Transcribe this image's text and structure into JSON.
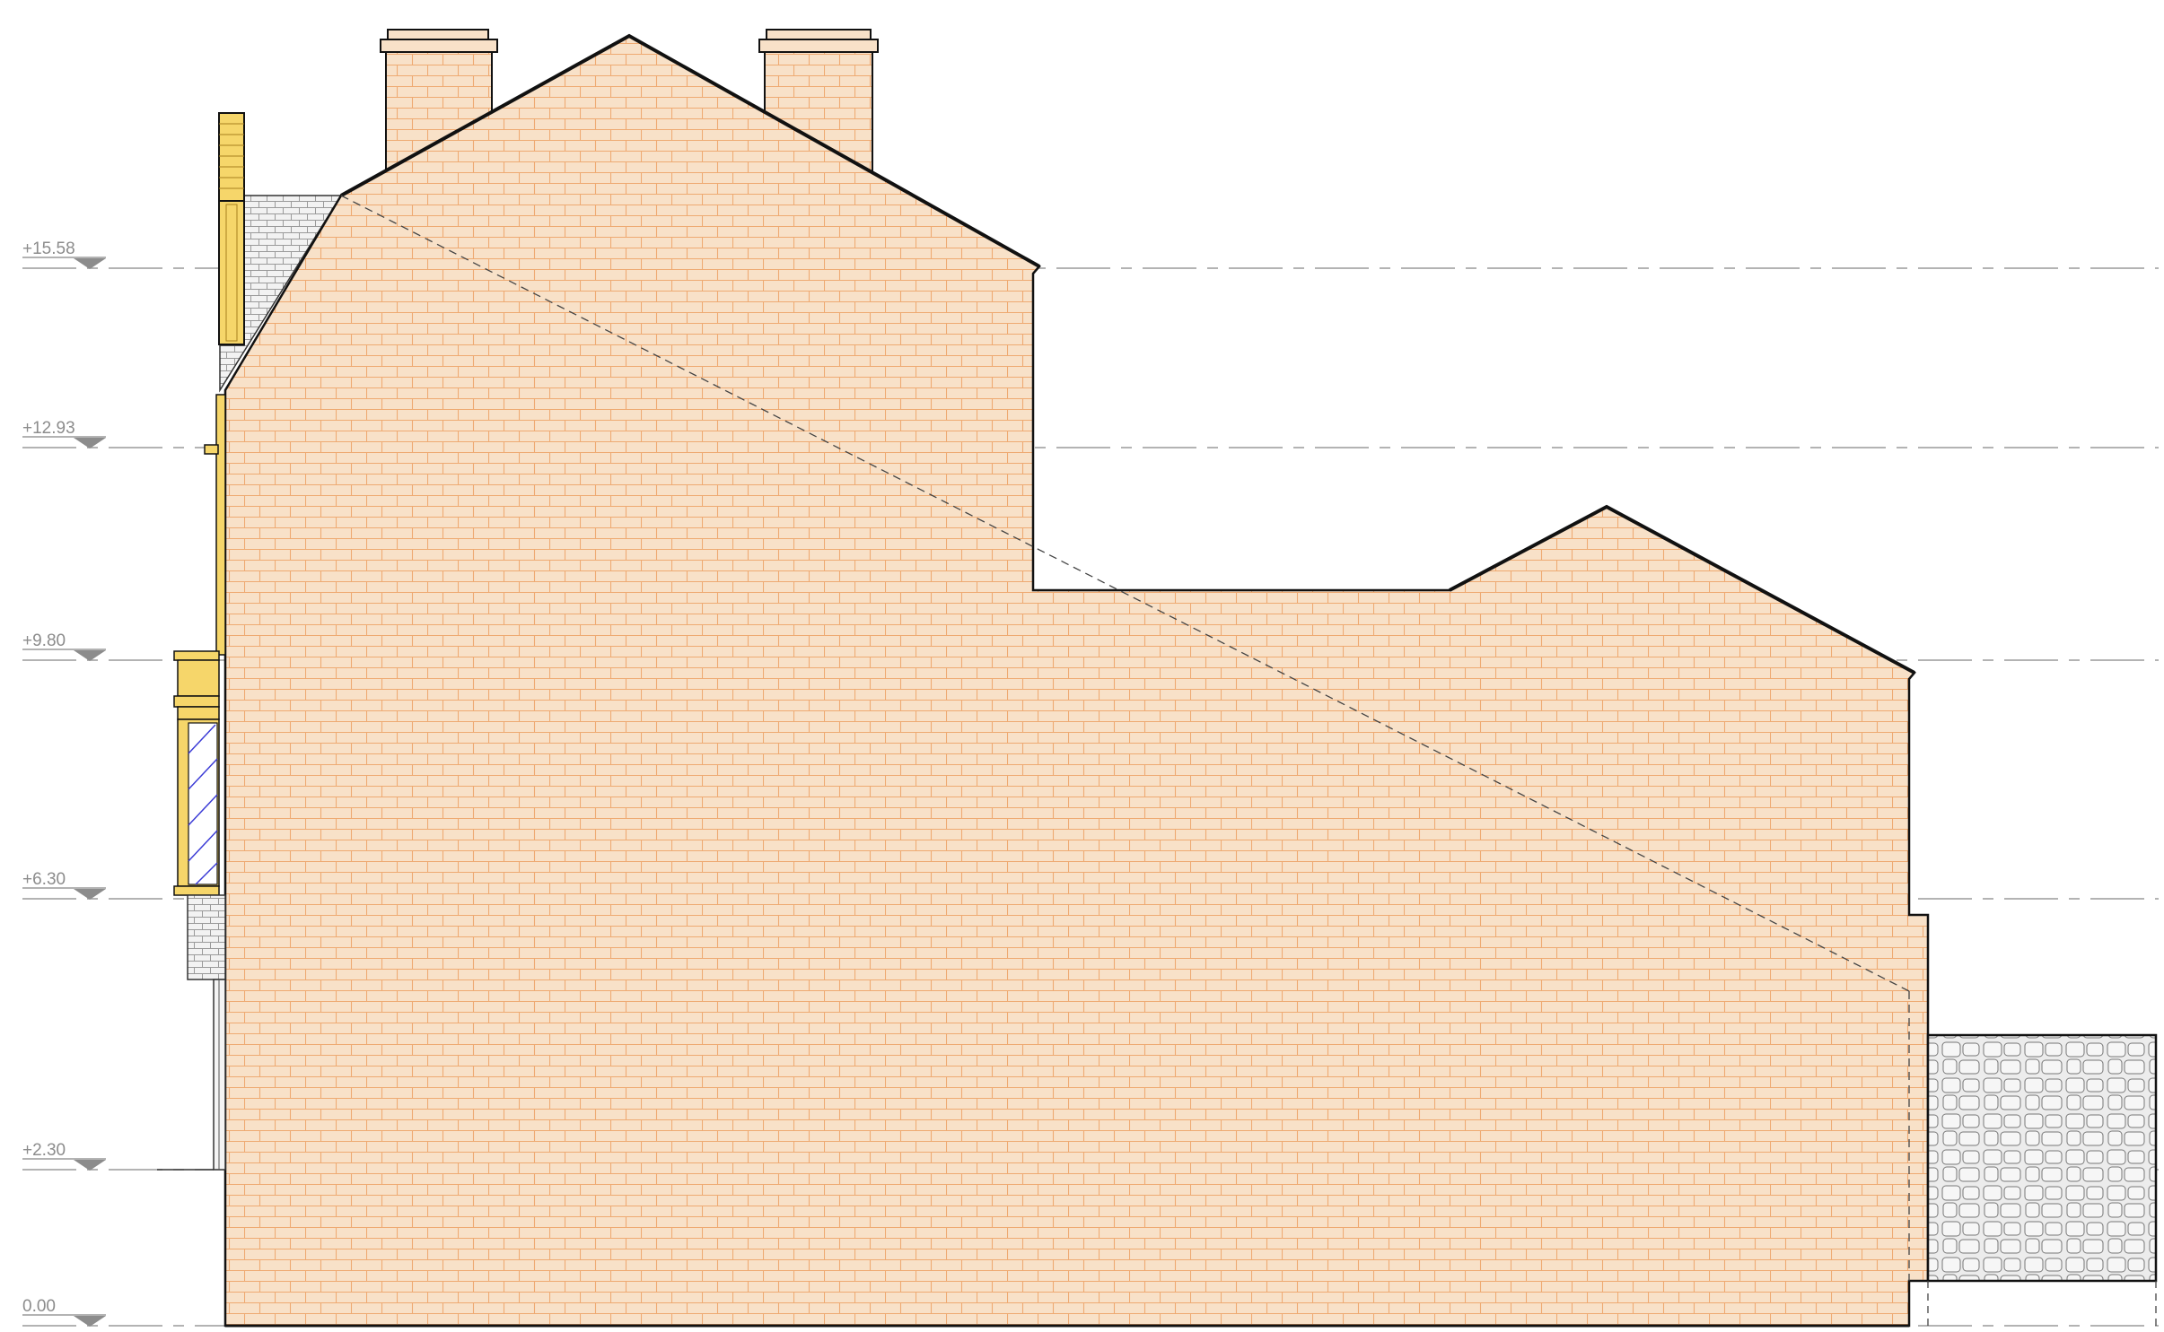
{
  "colors": {
    "brick_fill": "#f8e1c8",
    "brick_mortar": "#eeaa72",
    "outline": "#111111",
    "level_line": "#9a9a9a",
    "timber_yellow": "#f6d66a",
    "glass_hatch": "#3b3bd6",
    "stone_fill": "#ececec",
    "stone_line": "#777777"
  },
  "levels": [
    {
      "id": "lvl-15",
      "label": "+15.58"
    },
    {
      "id": "lvl-12",
      "label": "+12.93"
    },
    {
      "id": "lvl-9",
      "label": "+9.80"
    },
    {
      "id": "lvl-6",
      "label": "+6.30"
    },
    {
      "id": "lvl-2",
      "label": "+2.30"
    },
    {
      "id": "lvl-0",
      "label": "0.00"
    }
  ]
}
